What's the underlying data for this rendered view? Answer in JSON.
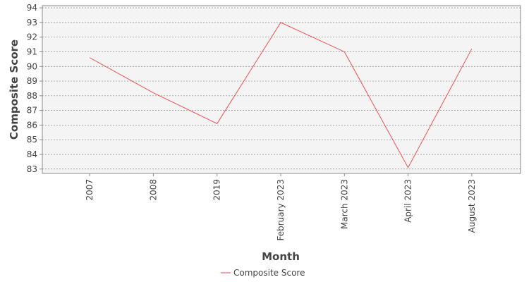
{
  "chart_data": {
    "type": "line",
    "x_label": "Month",
    "y_label": "Composite Score",
    "categories": [
      "2007",
      "2008",
      "2019",
      "February 2023",
      "March 2023",
      "April 2023",
      "August 2023"
    ],
    "series": [
      {
        "name": "Composite Score",
        "color": "#f05050",
        "values": [
          90.6,
          88.2,
          86.1,
          93.0,
          91.0,
          83.1,
          91.2
        ]
      }
    ],
    "ylim": [
      82.7,
      94.15
    ],
    "yticks": [
      83,
      84,
      85,
      86,
      87,
      88,
      89,
      90,
      91,
      92,
      93,
      94
    ],
    "grid": true,
    "legend": "bottom"
  }
}
